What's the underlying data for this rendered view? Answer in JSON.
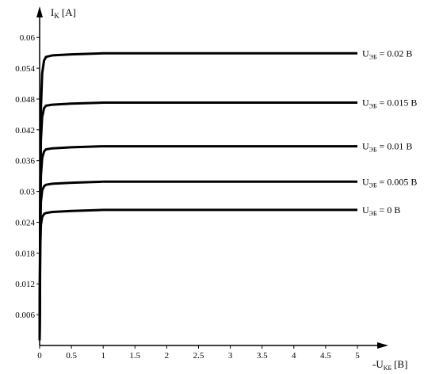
{
  "chart_data": {
    "type": "line",
    "title": "",
    "ylabel": {
      "main": "I",
      "sub": "K",
      "unit": "[A]"
    },
    "xlabel": {
      "main": "-U",
      "sub": "KБ",
      "unit": "[B]"
    },
    "xlim": [
      0,
      5.4
    ],
    "ylim": [
      0,
      0.065
    ],
    "x_ticks": [
      0,
      0.5,
      1,
      1.5,
      2,
      2.5,
      3,
      3.5,
      4,
      4.5,
      5
    ],
    "x_tick_labels": [
      "0",
      "0.5",
      "1",
      "1.5",
      "2",
      "2.5",
      "3",
      "3.5",
      "4",
      "4.5",
      "5"
    ],
    "y_ticks": [
      0.006,
      0.012,
      0.018,
      0.024,
      0.03,
      0.036,
      0.042,
      0.048,
      0.054,
      0.06
    ],
    "y_tick_labels": [
      "0.006",
      "0.012",
      "0.018",
      "0.024",
      "0.03",
      "0.036",
      "0.042",
      "0.048",
      "0.054",
      "0.06"
    ],
    "grid": false,
    "legend": "inline-right",
    "series": [
      {
        "label": {
          "main": "U",
          "sub": "ЭБ",
          "value": " = 0.02 B"
        },
        "x": [
          0,
          0.01,
          0.02,
          0.04,
          0.07,
          0.1,
          0.2,
          0.5,
          1,
          2,
          3,
          4,
          5
        ],
        "y": [
          0.001,
          0.03,
          0.046,
          0.053,
          0.0555,
          0.0562,
          0.0565,
          0.0567,
          0.0569,
          0.0569,
          0.0569,
          0.0569,
          0.0569
        ]
      },
      {
        "label": {
          "main": "U",
          "sub": "ЭБ",
          "value": " = 0.015 B"
        },
        "x": [
          0,
          0.01,
          0.02,
          0.04,
          0.07,
          0.1,
          0.2,
          0.5,
          1,
          2,
          3,
          4,
          5
        ],
        "y": [
          0.001,
          0.028,
          0.04,
          0.0445,
          0.0462,
          0.0467,
          0.0469,
          0.0471,
          0.0473,
          0.0473,
          0.0473,
          0.0473,
          0.0473
        ]
      },
      {
        "label": {
          "main": "U",
          "sub": "ЭБ",
          "value": " = 0.01 B"
        },
        "x": [
          0,
          0.01,
          0.02,
          0.04,
          0.07,
          0.1,
          0.2,
          0.5,
          1,
          2,
          3,
          4,
          5
        ],
        "y": [
          0.001,
          0.025,
          0.033,
          0.0365,
          0.0378,
          0.0382,
          0.0384,
          0.0386,
          0.0388,
          0.0388,
          0.0388,
          0.0388,
          0.0388
        ]
      },
      {
        "label": {
          "main": "U",
          "sub": "ЭБ",
          "value": " = 0.005 B"
        },
        "x": [
          0,
          0.01,
          0.02,
          0.04,
          0.07,
          0.1,
          0.2,
          0.5,
          1,
          2,
          3,
          4,
          5
        ],
        "y": [
          0.001,
          0.022,
          0.028,
          0.0302,
          0.031,
          0.0313,
          0.0315,
          0.0317,
          0.0319,
          0.0319,
          0.0319,
          0.0319,
          0.0319
        ]
      },
      {
        "label": {
          "main": "U",
          "sub": "ЭБ",
          "value": " = 0 B"
        },
        "x": [
          0,
          0.01,
          0.02,
          0.04,
          0.07,
          0.1,
          0.2,
          0.5,
          1,
          2,
          3,
          4,
          5
        ],
        "y": [
          0.001,
          0.019,
          0.0235,
          0.025,
          0.0256,
          0.0258,
          0.026,
          0.0262,
          0.0264,
          0.0264,
          0.0264,
          0.0264,
          0.0264
        ]
      }
    ]
  }
}
